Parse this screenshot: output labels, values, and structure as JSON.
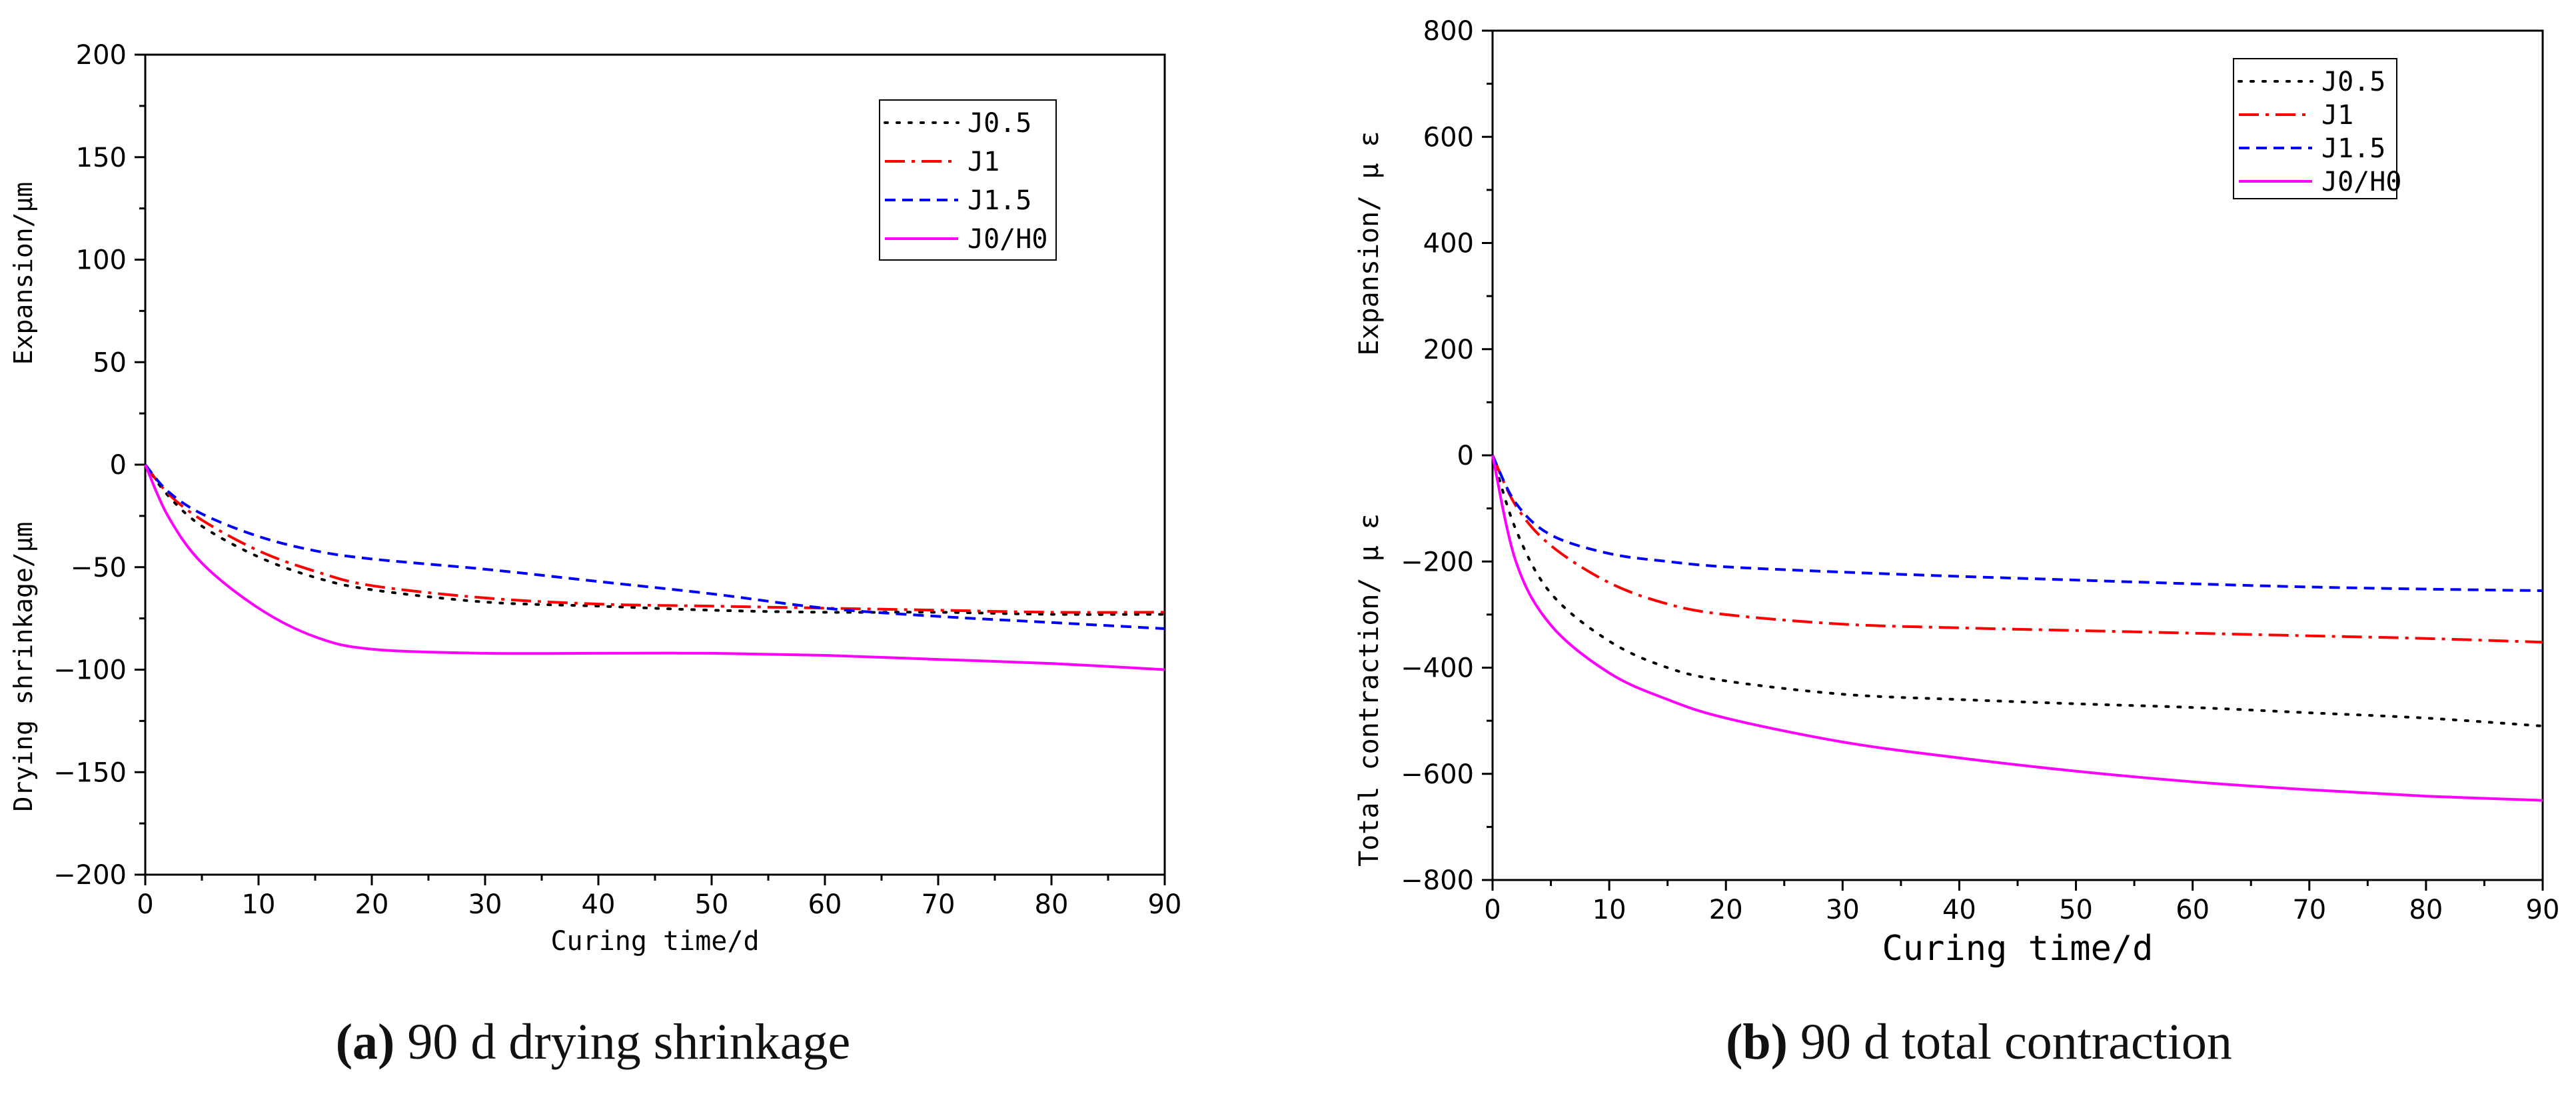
{
  "chart_data": [
    {
      "type": "line",
      "panel": "a",
      "xlabel": "Curing time/d",
      "ylabel_upper": "Expansion/μm",
      "ylabel_lower": "Drying shrinkage/μm",
      "xlim": [
        0,
        90
      ],
      "ylim": [
        -200,
        200
      ],
      "xticks": [
        0,
        10,
        20,
        30,
        40,
        50,
        60,
        70,
        80,
        90
      ],
      "yticks": [
        200,
        150,
        100,
        50,
        0,
        -50,
        -100,
        -150,
        -200
      ],
      "ytick_labels": [
        "200",
        "150",
        "100",
        "50",
        "0",
        "−50",
        "−100",
        "−150",
        "−200"
      ],
      "legend_position": "top-right",
      "x": [
        0,
        2,
        5,
        10,
        15,
        20,
        30,
        40,
        50,
        60,
        70,
        80,
        90
      ],
      "series": [
        {
          "name": "J0.5",
          "color": "#000000",
          "style": "dotted",
          "values": [
            0,
            -15,
            -30,
            -45,
            -55,
            -61,
            -67,
            -69,
            -71,
            -72,
            -72,
            -73,
            -73
          ]
        },
        {
          "name": "J1",
          "color": "#ff0000",
          "style": "dashdot",
          "values": [
            0,
            -14,
            -27,
            -42,
            -52,
            -59,
            -65,
            -68,
            -69,
            -70,
            -71,
            -72,
            -72
          ]
        },
        {
          "name": "J1.5",
          "color": "#0000ff",
          "style": "dashed",
          "values": [
            0,
            -13,
            -24,
            -35,
            -42,
            -46,
            -51,
            -57,
            -63,
            -70,
            -74,
            -77,
            -80
          ]
        },
        {
          "name": "J0/H0",
          "color": "#ff00ff",
          "style": "solid",
          "values": [
            0,
            -25,
            -48,
            -70,
            -84,
            -90,
            -92,
            -92,
            -92,
            -93,
            -95,
            -97,
            -100
          ]
        }
      ],
      "caption_label": "(a)",
      "caption_text": " 90 d drying shrinkage"
    },
    {
      "type": "line",
      "panel": "b",
      "xlabel": "Curing time/d",
      "ylabel_upper": "Expansion/ μ ε",
      "ylabel_lower": "Total contraction/ μ ε",
      "xlim": [
        0,
        90
      ],
      "ylim": [
        -800,
        800
      ],
      "xticks": [
        0,
        10,
        20,
        30,
        40,
        50,
        60,
        70,
        80,
        90
      ],
      "yticks": [
        800,
        600,
        400,
        200,
        0,
        -200,
        -400,
        -600,
        -800
      ],
      "ytick_labels": [
        "800",
        "600",
        "400",
        "200",
        "0",
        "−200",
        "−400",
        "−600",
        "−800"
      ],
      "legend_position": "top-right",
      "x": [
        0,
        2,
        5,
        10,
        15,
        20,
        30,
        40,
        50,
        60,
        70,
        80,
        90
      ],
      "series": [
        {
          "name": "J0.5",
          "color": "#000000",
          "style": "dotted",
          "values": [
            0,
            -140,
            -260,
            -350,
            -400,
            -425,
            -450,
            -460,
            -468,
            -475,
            -485,
            -495,
            -510
          ]
        },
        {
          "name": "J1",
          "color": "#ff0000",
          "style": "dashdot",
          "values": [
            0,
            -95,
            -170,
            -240,
            -280,
            -300,
            -318,
            -325,
            -330,
            -335,
            -340,
            -345,
            -352
          ]
        },
        {
          "name": "J1.5",
          "color": "#0000ff",
          "style": "dashed",
          "values": [
            0,
            -90,
            -150,
            -185,
            -200,
            -210,
            -220,
            -228,
            -235,
            -242,
            -248,
            -252,
            -255
          ]
        },
        {
          "name": "J0/H0",
          "color": "#ff00ff",
          "style": "solid",
          "values": [
            0,
            -200,
            -320,
            -410,
            -460,
            -495,
            -540,
            -570,
            -595,
            -615,
            -630,
            -642,
            -650
          ]
        }
      ],
      "caption_label": "(b)",
      "caption_text": " 90 d total contraction"
    }
  ]
}
